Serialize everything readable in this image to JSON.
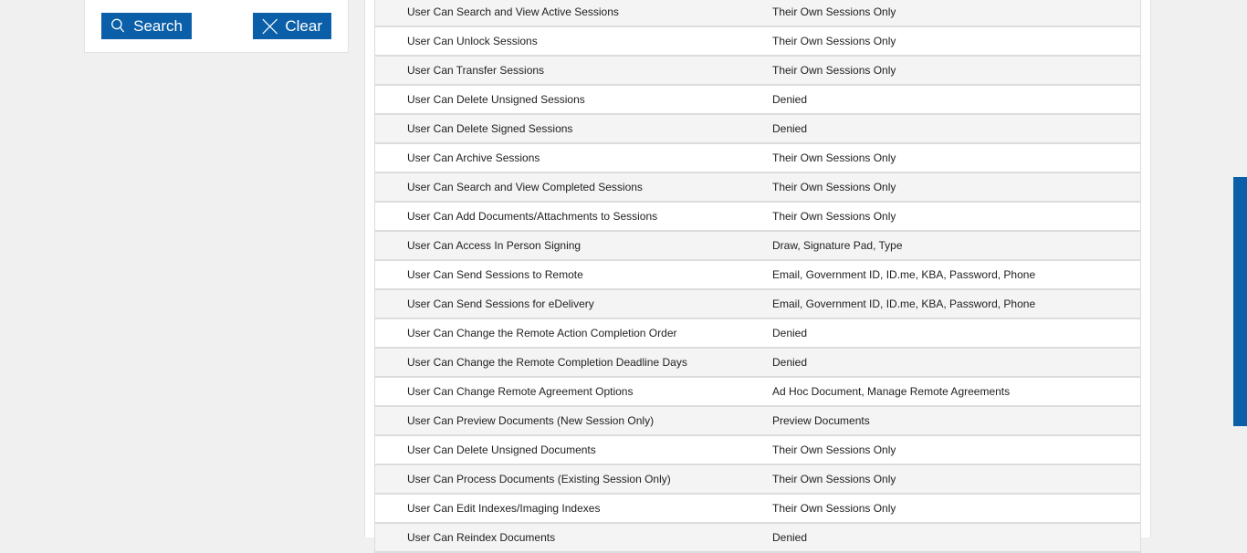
{
  "filters": {
    "search_label": "Search",
    "clear_label": "Clear",
    "search_icon": "search-icon",
    "clear_icon": "close-icon"
  },
  "permissions": [
    {
      "name": "User Can Search and View Active Sessions",
      "value": "Their Own Sessions Only"
    },
    {
      "name": "User Can Unlock Sessions",
      "value": "Their Own Sessions Only"
    },
    {
      "name": "User Can Transfer Sessions",
      "value": "Their Own Sessions Only"
    },
    {
      "name": "User Can Delete Unsigned Sessions",
      "value": "Denied"
    },
    {
      "name": "User Can Delete Signed Sessions",
      "value": "Denied"
    },
    {
      "name": "User Can Archive Sessions",
      "value": "Their Own Sessions Only"
    },
    {
      "name": "User Can Search and View Completed Sessions",
      "value": "Their Own Sessions Only"
    },
    {
      "name": "User Can Add Documents/Attachments to Sessions",
      "value": "Their Own Sessions Only"
    },
    {
      "name": "User Can Access In Person Signing",
      "value": "Draw, Signature Pad, Type"
    },
    {
      "name": "User Can Send Sessions to Remote",
      "value": "Email, Government ID, ID.me, KBA, Password, Phone"
    },
    {
      "name": "User Can Send Sessions for eDelivery",
      "value": "Email, Government ID, ID.me, KBA, Password, Phone"
    },
    {
      "name": "User Can Change the Remote Action Completion Order",
      "value": "Denied"
    },
    {
      "name": "User Can Change the Remote Completion Deadline Days",
      "value": "Denied"
    },
    {
      "name": "User Can Change Remote Agreement Options",
      "value": "Ad Hoc Document, Manage Remote Agreements"
    },
    {
      "name": "User Can Preview Documents (New Session Only)",
      "value": "Preview Documents"
    },
    {
      "name": "User Can Delete Unsigned Documents",
      "value": "Their Own Sessions Only"
    },
    {
      "name": "User Can Process Documents (Existing Session Only)",
      "value": "Their Own Sessions Only"
    },
    {
      "name": "User Can Edit Indexes/Imaging Indexes",
      "value": "Their Own Sessions Only"
    },
    {
      "name": "User Can Reindex Documents",
      "value": "Denied"
    }
  ],
  "colors": {
    "accent": "#0a5fa8"
  }
}
